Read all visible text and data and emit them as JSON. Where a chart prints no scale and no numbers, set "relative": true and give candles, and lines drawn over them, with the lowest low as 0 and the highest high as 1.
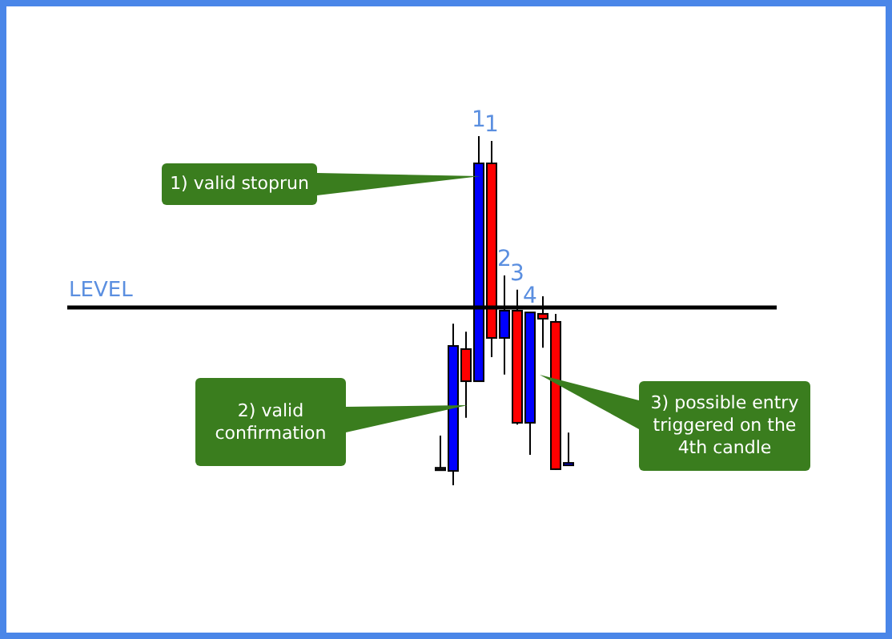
{
  "chart_data": {
    "type": "candlestick",
    "relative": true,
    "categories": [
      null,
      null,
      null,
      null,
      null,
      null,
      null,
      null,
      null,
      null,
      null
    ],
    "ohlc": [
      [
        0.046,
        0.142,
        0.046,
        0.05
      ],
      [
        0.041,
        0.463,
        0,
        0.399
      ],
      [
        0.39,
        0.44,
        0.193,
        0.298
      ],
      [
        0.298,
        1,
        0.298,
        0.922
      ],
      [
        0.922,
        0.986,
        0.367,
        0.422
      ],
      [
        0.422,
        0.601,
        0.317,
        0.5
      ],
      [
        0.5,
        0.56,
        0.174,
        0.179
      ],
      [
        0.179,
        0.495,
        0.087,
        0.495
      ],
      [
        0.491,
        0.541,
        0.394,
        0.477
      ],
      [
        0.468,
        0.491,
        0.044,
        0.046
      ],
      [
        0.06,
        0.151,
        0.06,
        0.064
      ]
    ],
    "colors": [
      "#222222",
      "#0000ff",
      "#ff0000",
      "#0000ff",
      "#ff0000",
      "#0000ff",
      "#ff0000",
      "#0000ff",
      "#ff0000",
      "#ff0000",
      "#0000ff"
    ],
    "value_labels": [
      null,
      null,
      null,
      "1",
      "1",
      "2",
      "3",
      "4",
      null,
      null,
      null
    ],
    "ref_lines": [
      {
        "axis": "y",
        "value": 0.509,
        "label": "LEVEL",
        "color": "#000000"
      }
    ],
    "annotations": [
      "1) valid stoprun",
      "2) valid confirmation",
      "3) possible entry triggered on the 4th candle"
    ]
  }
}
